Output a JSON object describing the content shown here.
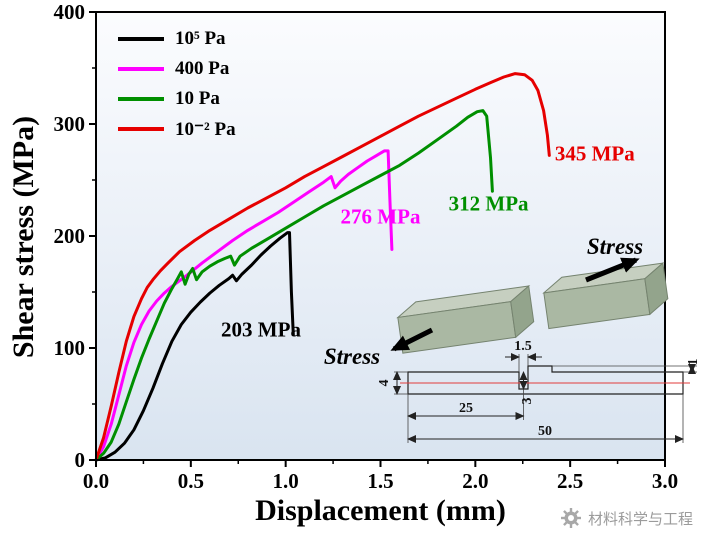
{
  "chart_data": {
    "type": "line",
    "title": "",
    "xlabel": "Displacement (mm)",
    "ylabel": "Shear stress (MPa)",
    "xlim": [
      0,
      3
    ],
    "ylim": [
      0,
      400
    ],
    "xticks": [
      "0.0",
      "0.5",
      "1.0",
      "1.5",
      "2.0",
      "2.5",
      "3.0"
    ],
    "yticks": [
      "0",
      "100",
      "200",
      "300",
      "400"
    ],
    "x_minor_step": 0.25,
    "y_minor_step": 50,
    "grid": false,
    "legend_position": "top-left",
    "plot_bg_top": "#fbfcfe",
    "plot_bg_bottom": "#d9e4f0",
    "series": [
      {
        "name": "10⁵ Pa",
        "color": "#000000",
        "points": [
          [
            0,
            0
          ],
          [
            0.05,
            2
          ],
          [
            0.1,
            7
          ],
          [
            0.15,
            15
          ],
          [
            0.2,
            27
          ],
          [
            0.25,
            44
          ],
          [
            0.3,
            64
          ],
          [
            0.35,
            86
          ],
          [
            0.4,
            106
          ],
          [
            0.45,
            121
          ],
          [
            0.5,
            132
          ],
          [
            0.55,
            141
          ],
          [
            0.6,
            149
          ],
          [
            0.65,
            156
          ],
          [
            0.7,
            162
          ],
          [
            0.72,
            165
          ],
          [
            0.74,
            160
          ],
          [
            0.77,
            166
          ],
          [
            0.82,
            174
          ],
          [
            0.87,
            183
          ],
          [
            0.92,
            191
          ],
          [
            0.97,
            198
          ],
          [
            1.01,
            203
          ],
          [
            1.02,
            203
          ],
          [
            1.03,
            150
          ],
          [
            1.04,
            112
          ]
        ]
      },
      {
        "name": "400 Pa",
        "color": "#ff00ff",
        "points": [
          [
            0,
            0
          ],
          [
            0.04,
            12
          ],
          [
            0.08,
            32
          ],
          [
            0.12,
            58
          ],
          [
            0.16,
            84
          ],
          [
            0.2,
            105
          ],
          [
            0.24,
            121
          ],
          [
            0.28,
            133
          ],
          [
            0.32,
            142
          ],
          [
            0.36,
            149
          ],
          [
            0.4,
            155
          ],
          [
            0.48,
            165
          ],
          [
            0.56,
            176
          ],
          [
            0.64,
            186
          ],
          [
            0.72,
            196
          ],
          [
            0.8,
            205
          ],
          [
            0.88,
            213
          ],
          [
            0.96,
            221
          ],
          [
            1.04,
            230
          ],
          [
            1.12,
            239
          ],
          [
            1.2,
            248
          ],
          [
            1.24,
            253
          ],
          [
            1.26,
            243
          ],
          [
            1.29,
            249
          ],
          [
            1.33,
            255
          ],
          [
            1.38,
            261
          ],
          [
            1.43,
            267
          ],
          [
            1.48,
            272
          ],
          [
            1.52,
            276
          ],
          [
            1.54,
            276
          ],
          [
            1.55,
            230
          ],
          [
            1.56,
            188
          ]
        ]
      },
      {
        "name": "10 Pa",
        "color": "#008f00",
        "points": [
          [
            0,
            0
          ],
          [
            0.04,
            6
          ],
          [
            0.08,
            16
          ],
          [
            0.12,
            32
          ],
          [
            0.16,
            52
          ],
          [
            0.2,
            72
          ],
          [
            0.24,
            91
          ],
          [
            0.28,
            108
          ],
          [
            0.32,
            124
          ],
          [
            0.36,
            140
          ],
          [
            0.4,
            153
          ],
          [
            0.43,
            162
          ],
          [
            0.45,
            168
          ],
          [
            0.47,
            157
          ],
          [
            0.49,
            166
          ],
          [
            0.51,
            171
          ],
          [
            0.53,
            161
          ],
          [
            0.56,
            168
          ],
          [
            0.6,
            173
          ],
          [
            0.64,
            177
          ],
          [
            0.68,
            180
          ],
          [
            0.71,
            182
          ],
          [
            0.73,
            174
          ],
          [
            0.76,
            182
          ],
          [
            0.82,
            189
          ],
          [
            0.9,
            197
          ],
          [
            1.0,
            207
          ],
          [
            1.1,
            217
          ],
          [
            1.2,
            227
          ],
          [
            1.3,
            236
          ],
          [
            1.4,
            245
          ],
          [
            1.5,
            254
          ],
          [
            1.6,
            263
          ],
          [
            1.7,
            274
          ],
          [
            1.8,
            286
          ],
          [
            1.9,
            298
          ],
          [
            1.96,
            306
          ],
          [
            2.01,
            311
          ],
          [
            2.04,
            312
          ],
          [
            2.06,
            307
          ],
          [
            2.08,
            270
          ],
          [
            2.09,
            240
          ]
        ]
      },
      {
        "name": "10⁻² Pa",
        "color": "#e60000",
        "points": [
          [
            0,
            0
          ],
          [
            0.04,
            20
          ],
          [
            0.08,
            48
          ],
          [
            0.12,
            78
          ],
          [
            0.16,
            106
          ],
          [
            0.2,
            128
          ],
          [
            0.24,
            144
          ],
          [
            0.27,
            154
          ],
          [
            0.3,
            161
          ],
          [
            0.34,
            169
          ],
          [
            0.38,
            176
          ],
          [
            0.44,
            186
          ],
          [
            0.52,
            196
          ],
          [
            0.6,
            205
          ],
          [
            0.7,
            215
          ],
          [
            0.8,
            225
          ],
          [
            0.9,
            234
          ],
          [
            1.0,
            243
          ],
          [
            1.1,
            253
          ],
          [
            1.2,
            262
          ],
          [
            1.3,
            271
          ],
          [
            1.4,
            280
          ],
          [
            1.5,
            289
          ],
          [
            1.6,
            298
          ],
          [
            1.7,
            307
          ],
          [
            1.8,
            315
          ],
          [
            1.9,
            323
          ],
          [
            2.0,
            331
          ],
          [
            2.08,
            337
          ],
          [
            2.15,
            342
          ],
          [
            2.21,
            345
          ],
          [
            2.26,
            344
          ],
          [
            2.3,
            339
          ],
          [
            2.33,
            330
          ],
          [
            2.36,
            312
          ],
          [
            2.38,
            290
          ],
          [
            2.39,
            272
          ]
        ]
      }
    ],
    "annotations": [
      {
        "text": "203 MPa",
        "x": 0.87,
        "y": 116,
        "color": "#000000"
      },
      {
        "text": "276 MPa",
        "x": 1.5,
        "y": 217,
        "color": "#ff00ff"
      },
      {
        "text": "312 MPa",
        "x": 2.07,
        "y": 229,
        "color": "#008f00"
      },
      {
        "text": "345 MPa",
        "x": 2.63,
        "y": 273,
        "color": "#e60000"
      }
    ]
  },
  "inset": {
    "stress_label": "Stress",
    "centerline_color": "#e23b3b",
    "block_top_color": "#c6cfc0",
    "block_front_color": "#aab8a3",
    "block_side_color": "#93a48c",
    "dimensions": {
      "notch_width": "1.5",
      "ligament": "1",
      "height": "4",
      "notch_depth": "3",
      "half_length": "25",
      "length": "50"
    }
  },
  "watermark": {
    "text": "材料科学与工程"
  }
}
